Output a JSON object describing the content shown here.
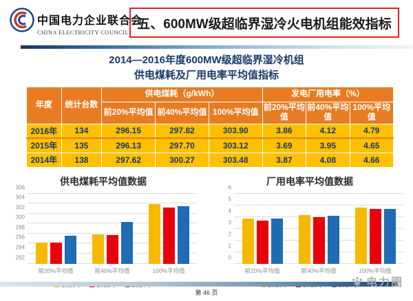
{
  "header": {
    "org_name_cn": "中国电力企业联合会",
    "org_name_en": "CHINA ELECTRICITY COUNCIL",
    "slide_title": "五、600MW级超临界湿冷火电机组能效指标"
  },
  "table": {
    "title_line1": "2014—2016年度600MW级超临界湿冷机组",
    "title_line2": "供电煤耗及厂用电率平均值指标",
    "col_year": "年度",
    "col_units": "统计台数",
    "group_coal": "供电煤耗（g/kWh）",
    "group_power": "发电厂用电率（%）",
    "subcols": [
      "前20%平均值",
      "前40%平均值",
      "100%平均值",
      "前20%平均值",
      "前40%平均值",
      "100%平均值"
    ],
    "rows": [
      {
        "year": "2016年",
        "units": "134",
        "values": [
          "296.15",
          "297.82",
          "303.90",
          "3.86",
          "4.12",
          "4.79"
        ]
      },
      {
        "year": "2015年",
        "units": "135",
        "values": [
          "296.13",
          "297.70",
          "303.12",
          "3.69",
          "3.95",
          "4.65"
        ]
      },
      {
        "year": "2014年",
        "units": "138",
        "values": [
          "297.62",
          "300.27",
          "303.48",
          "3.87",
          "4.08",
          "4.66"
        ]
      }
    ]
  },
  "chart_data": [
    {
      "type": "bar",
      "title": "供电煤耗平均值数据",
      "categories": [
        "前20%平均值",
        "前40%平均值",
        "100%平均值"
      ],
      "series": [
        {
          "name": "2016年",
          "color": "#f5b900",
          "values": [
            296.15,
            297.82,
            303.9
          ]
        },
        {
          "name": "2015年",
          "color": "#e8000d",
          "values": [
            296.13,
            297.7,
            303.12
          ]
        },
        {
          "name": "2014年",
          "color": "#1f6cb4",
          "values": [
            297.62,
            300.27,
            303.48
          ]
        }
      ],
      "ylim": [
        292,
        306
      ],
      "yticks": [
        292,
        294,
        296,
        298,
        300,
        302,
        304,
        306
      ],
      "grid": true,
      "legend_position": "bottom"
    },
    {
      "type": "bar",
      "title": "厂用电率平均值数据",
      "categories": [
        "前20%平均值",
        "前40%平均值",
        "100%平均值"
      ],
      "series": [
        {
          "name": "2016年",
          "color": "#f5b900",
          "values": [
            3.86,
            4.12,
            4.79
          ]
        },
        {
          "name": "2015年",
          "color": "#e8000d",
          "values": [
            3.69,
            3.95,
            4.65
          ]
        },
        {
          "name": "2014年",
          "color": "#1f6cb4",
          "values": [
            3.87,
            4.08,
            4.66
          ]
        }
      ],
      "ylim": [
        0,
        6
      ],
      "yticks": [
        0,
        1,
        2,
        3,
        4,
        5,
        6
      ],
      "grid": true,
      "legend_position": "bottom"
    }
  ],
  "footer": {
    "page_label": "第 46 页",
    "watermark": "电力圈"
  },
  "colors": {
    "table_header_orange": "#e87c22",
    "table_row_gold": "#ffc000",
    "table_text_navy": "#17386b",
    "title_border_red": "#e32020",
    "divider_navy": "#16365c"
  }
}
